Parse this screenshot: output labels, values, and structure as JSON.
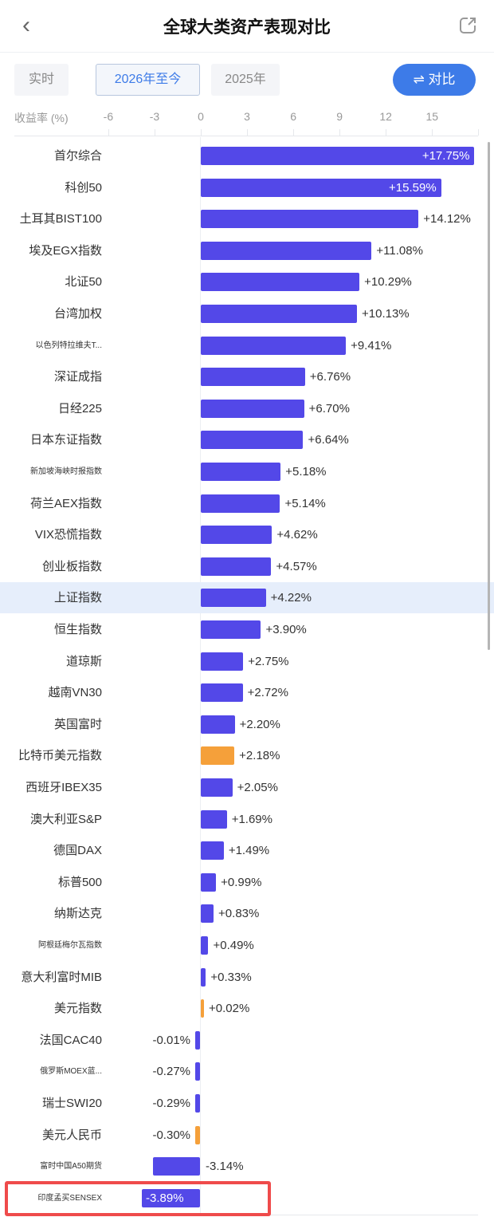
{
  "header": {
    "back_icon": "‹",
    "title": "全球大类资产表现对比",
    "share_icon": "share-icon"
  },
  "tabs": [
    {
      "label": "实时",
      "active": false
    },
    {
      "label": "2026年至今",
      "active": true
    },
    {
      "label": "2025年",
      "active": false
    }
  ],
  "compare_button": {
    "label": "⇌ 对比",
    "icon": "swap-icon"
  },
  "colors": {
    "bar_blue": "#5348e8",
    "bar_orange": "#f5a03a",
    "accent": "#3d7be8",
    "highlight": "#e6eefb",
    "annotation_red": "#ef4b4b"
  },
  "chart_data": {
    "type": "bar",
    "orientation": "horizontal",
    "title": "全球大类资产表现对比",
    "xlabel": "收益率 (%)",
    "ylabel": "",
    "xticks": [
      "-6",
      "-3",
      "0",
      "3",
      "6",
      "9",
      "12",
      "15"
    ],
    "xlim": [
      -6,
      18
    ],
    "grid": false,
    "legend": null,
    "period": "2026年至今",
    "highlighted_category": "上证指数",
    "annotated_category": "印度孟买SENSEX",
    "categories": [
      "首尔综合",
      "科创50",
      "土耳其BIST100",
      "埃及EGX指数",
      "北证50",
      "台湾加权",
      "以色列特拉维夫T...",
      "深证成指",
      "日经225",
      "日本东证指数",
      "新加坡海峡时报指数",
      "荷兰AEX指数",
      "VIX恐慌指数",
      "创业板指数",
      "上证指数",
      "恒生指数",
      "道琼斯",
      "越南VN30",
      "英国富时",
      "比特币美元指数",
      "西班牙IBEX35",
      "澳大利亚S&P",
      "德国DAX",
      "标普500",
      "纳斯达克",
      "阿根廷梅尔瓦指数",
      "意大利富时MIB",
      "美元指数",
      "法国CAC40",
      "俄罗斯MOEX蓝...",
      "瑞士SWI20",
      "美元人民币",
      "富时中国A50期货",
      "印度孟买SENSEX"
    ],
    "values": [
      17.75,
      15.59,
      14.12,
      11.08,
      10.29,
      10.13,
      9.41,
      6.76,
      6.7,
      6.64,
      5.18,
      5.14,
      4.62,
      4.57,
      4.22,
      3.9,
      2.75,
      2.72,
      2.2,
      2.18,
      2.05,
      1.69,
      1.49,
      0.99,
      0.83,
      0.49,
      0.33,
      0.02,
      -0.01,
      -0.27,
      -0.29,
      -0.3,
      -3.14,
      -3.89
    ],
    "value_labels": [
      "+17.75%",
      "+15.59%",
      "+14.12%",
      "+11.08%",
      "+10.29%",
      "+10.13%",
      "+9.41%",
      "+6.76%",
      "+6.70%",
      "+6.64%",
      "+5.18%",
      "+5.14%",
      "+4.62%",
      "+4.57%",
      "+4.22%",
      "+3.90%",
      "+2.75%",
      "+2.72%",
      "+2.20%",
      "+2.18%",
      "+2.05%",
      "+1.69%",
      "+1.49%",
      "+0.99%",
      "+0.83%",
      "+0.49%",
      "+0.33%",
      "+0.02%",
      "-0.01%",
      "-0.27%",
      "-0.29%",
      "-0.30%",
      "-3.14%",
      "-3.89%"
    ],
    "bar_colors": [
      "blue",
      "blue",
      "blue",
      "blue",
      "blue",
      "blue",
      "blue",
      "blue",
      "blue",
      "blue",
      "blue",
      "blue",
      "blue",
      "blue",
      "blue",
      "blue",
      "blue",
      "blue",
      "blue",
      "orange",
      "blue",
      "blue",
      "blue",
      "blue",
      "blue",
      "blue",
      "blue",
      "orange",
      "blue",
      "blue",
      "blue",
      "orange",
      "blue",
      "blue"
    ],
    "small_labels": [
      6,
      10,
      25,
      29,
      32,
      33
    ]
  }
}
